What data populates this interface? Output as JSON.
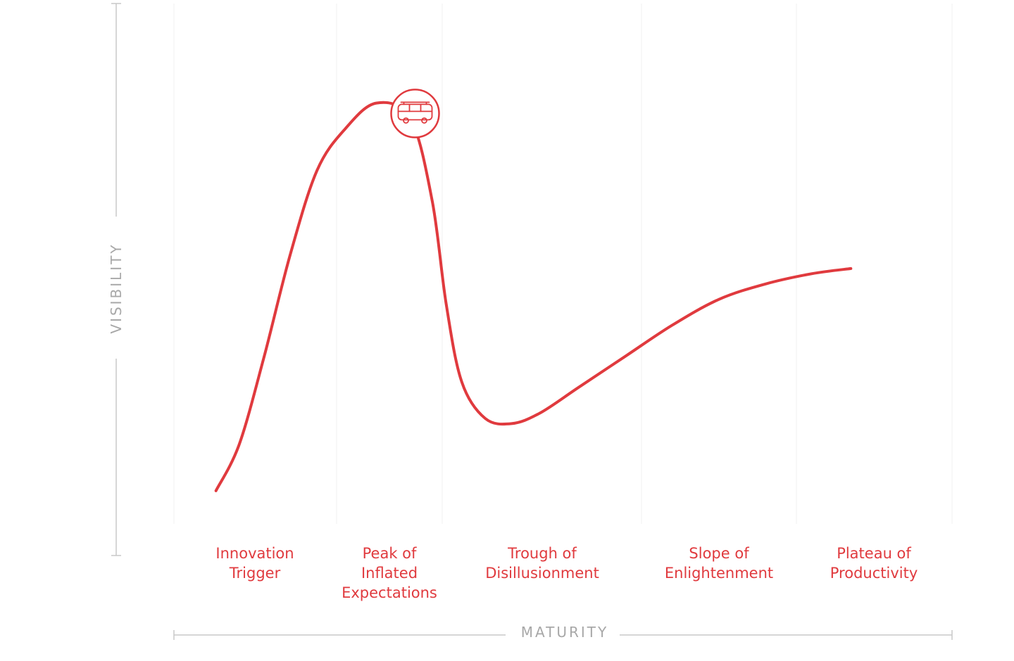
{
  "colors": {
    "accent": "#e03a3e",
    "axis": "#c9c9c9",
    "axis_label": "#a8a8a8",
    "grid": "#f1f1f1"
  },
  "marker": {
    "icon": "bus-icon",
    "x": 1.55,
    "y": 0.79
  },
  "chart_data": {
    "type": "line",
    "xlabel": "MATURITY",
    "ylabel": "VISIBILITY",
    "xlim": [
      0,
      5
    ],
    "ylim": [
      0,
      1
    ],
    "grid": true,
    "categories": [
      [
        "Innovation",
        "Trigger"
      ],
      [
        "Peak of",
        "Inflated",
        "Expectations"
      ],
      [
        "Trough of",
        "Disillusionment"
      ],
      [
        "Slope of",
        "Enlightenment"
      ],
      [
        "Plateau of",
        "Productivity"
      ]
    ],
    "series": [
      {
        "values": [
          [
            0.27,
            0.06
          ],
          [
            0.42,
            0.15
          ],
          [
            0.58,
            0.32
          ],
          [
            0.75,
            0.52
          ],
          [
            0.92,
            0.68
          ],
          [
            1.1,
            0.76
          ],
          [
            1.3,
            0.81
          ],
          [
            1.52,
            0.78
          ],
          [
            1.66,
            0.62
          ],
          [
            1.75,
            0.42
          ],
          [
            1.85,
            0.27
          ],
          [
            2.0,
            0.2
          ],
          [
            2.17,
            0.19
          ],
          [
            2.35,
            0.21
          ],
          [
            2.6,
            0.26
          ],
          [
            2.9,
            0.32
          ],
          [
            3.2,
            0.38
          ],
          [
            3.5,
            0.43
          ],
          [
            3.8,
            0.46
          ],
          [
            4.1,
            0.48
          ],
          [
            4.35,
            0.49
          ]
        ]
      }
    ]
  }
}
